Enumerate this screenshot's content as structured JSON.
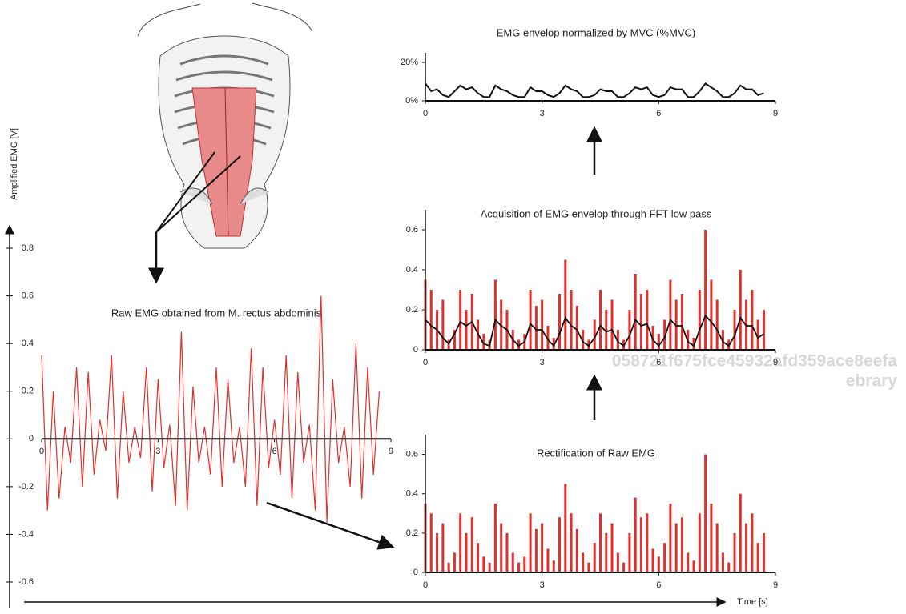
{
  "chart_data": [
    {
      "type": "line",
      "title": "Raw EMG obtained from M. rectus abdominis",
      "ylabel": "Amplified EMG [V]",
      "xlabel": "Time [s]",
      "color": "#e0302b",
      "xlim": [
        0,
        9
      ],
      "ylim": [
        -0.6,
        0.8
      ],
      "xticks": [
        0,
        3,
        6,
        9
      ],
      "yticks": [
        -0.6,
        -0.4,
        -0.2,
        0,
        0.2,
        0.4,
        0.6,
        0.8
      ],
      "x": [
        0,
        0.15,
        0.3,
        0.45,
        0.6,
        0.75,
        0.9,
        1.05,
        1.2,
        1.35,
        1.5,
        1.65,
        1.8,
        1.95,
        2.1,
        2.25,
        2.4,
        2.55,
        2.7,
        2.85,
        3.0,
        3.15,
        3.3,
        3.45,
        3.6,
        3.75,
        3.9,
        4.05,
        4.2,
        4.35,
        4.5,
        4.65,
        4.8,
        4.95,
        5.1,
        5.25,
        5.4,
        5.55,
        5.7,
        5.85,
        6.0,
        6.15,
        6.3,
        6.45,
        6.6,
        6.75,
        6.9,
        7.05,
        7.2,
        7.35,
        7.5,
        7.65,
        7.8,
        7.95,
        8.1,
        8.25,
        8.4,
        8.55,
        8.7
      ],
      "values": [
        0.35,
        -0.3,
        0.2,
        -0.25,
        0.05,
        -0.1,
        0.3,
        -0.2,
        0.28,
        -0.15,
        0.08,
        -0.05,
        0.35,
        -0.25,
        0.2,
        -0.1,
        0.05,
        -0.08,
        0.3,
        -0.22,
        0.25,
        -0.12,
        0.06,
        -0.28,
        0.45,
        -0.3,
        0.22,
        -0.1,
        0.05,
        -0.15,
        0.3,
        -0.2,
        0.25,
        -0.1,
        0.05,
        -0.2,
        0.38,
        -0.28,
        0.3,
        -0.12,
        0.08,
        -0.15,
        0.35,
        -0.25,
        0.28,
        -0.1,
        0.06,
        -0.3,
        0.6,
        -0.35,
        0.25,
        -0.1,
        0.05,
        -0.2,
        0.4,
        -0.25,
        0.3,
        -0.15,
        0.2
      ]
    },
    {
      "type": "bar",
      "title": "Rectification of Raw EMG",
      "color": "#e0302b",
      "xlim": [
        0,
        9
      ],
      "ylim": [
        0,
        0.7
      ],
      "xticks": [
        0,
        3,
        6,
        9
      ],
      "yticks": [
        0,
        0.2,
        0.4,
        0.6
      ],
      "x": [
        0,
        0.15,
        0.3,
        0.45,
        0.6,
        0.75,
        0.9,
        1.05,
        1.2,
        1.35,
        1.5,
        1.65,
        1.8,
        1.95,
        2.1,
        2.25,
        2.4,
        2.55,
        2.7,
        2.85,
        3.0,
        3.15,
        3.3,
        3.45,
        3.6,
        3.75,
        3.9,
        4.05,
        4.2,
        4.35,
        4.5,
        4.65,
        4.8,
        4.95,
        5.1,
        5.25,
        5.4,
        5.55,
        5.7,
        5.85,
        6.0,
        6.15,
        6.3,
        6.45,
        6.6,
        6.75,
        6.9,
        7.05,
        7.2,
        7.35,
        7.5,
        7.65,
        7.8,
        7.95,
        8.1,
        8.25,
        8.4,
        8.55,
        8.7
      ],
      "values": [
        0.35,
        0.3,
        0.2,
        0.25,
        0.05,
        0.1,
        0.3,
        0.2,
        0.28,
        0.15,
        0.08,
        0.05,
        0.35,
        0.25,
        0.2,
        0.1,
        0.05,
        0.08,
        0.3,
        0.22,
        0.25,
        0.12,
        0.06,
        0.28,
        0.45,
        0.3,
        0.22,
        0.1,
        0.05,
        0.15,
        0.3,
        0.2,
        0.25,
        0.1,
        0.05,
        0.2,
        0.38,
        0.28,
        0.3,
        0.12,
        0.08,
        0.15,
        0.35,
        0.25,
        0.28,
        0.1,
        0.06,
        0.3,
        0.6,
        0.35,
        0.25,
        0.1,
        0.05,
        0.2,
        0.4,
        0.25,
        0.3,
        0.15,
        0.2
      ]
    },
    {
      "type": "bar_line",
      "title": "Acquisition of EMG envelop through FFT low pass",
      "xlim": [
        0,
        9
      ],
      "ylim": [
        0,
        0.7
      ],
      "xticks": [
        0,
        3,
        6,
        9
      ],
      "yticks": [
        0,
        0.2,
        0.4,
        0.6
      ],
      "x": [
        0,
        0.15,
        0.3,
        0.45,
        0.6,
        0.75,
        0.9,
        1.05,
        1.2,
        1.35,
        1.5,
        1.65,
        1.8,
        1.95,
        2.1,
        2.25,
        2.4,
        2.55,
        2.7,
        2.85,
        3.0,
        3.15,
        3.3,
        3.45,
        3.6,
        3.75,
        3.9,
        4.05,
        4.2,
        4.35,
        4.5,
        4.65,
        4.8,
        4.95,
        5.1,
        5.25,
        5.4,
        5.55,
        5.7,
        5.85,
        6.0,
        6.15,
        6.3,
        6.45,
        6.6,
        6.75,
        6.9,
        7.05,
        7.2,
        7.35,
        7.5,
        7.65,
        7.8,
        7.95,
        8.1,
        8.25,
        8.4,
        8.55,
        8.7
      ],
      "series": [
        {
          "style": "bar",
          "color": "#e0302b",
          "values": [
            0.35,
            0.3,
            0.2,
            0.25,
            0.05,
            0.1,
            0.3,
            0.2,
            0.28,
            0.15,
            0.08,
            0.05,
            0.35,
            0.25,
            0.2,
            0.1,
            0.05,
            0.08,
            0.3,
            0.22,
            0.25,
            0.12,
            0.06,
            0.28,
            0.45,
            0.3,
            0.22,
            0.1,
            0.05,
            0.15,
            0.3,
            0.2,
            0.25,
            0.1,
            0.05,
            0.2,
            0.38,
            0.28,
            0.3,
            0.12,
            0.08,
            0.15,
            0.35,
            0.25,
            0.28,
            0.1,
            0.06,
            0.3,
            0.6,
            0.35,
            0.25,
            0.1,
            0.05,
            0.2,
            0.4,
            0.25,
            0.3,
            0.15,
            0.2
          ]
        },
        {
          "style": "line",
          "color": "#111111",
          "values": [
            0.15,
            0.12,
            0.1,
            0.06,
            0.03,
            0.08,
            0.14,
            0.12,
            0.14,
            0.08,
            0.03,
            0.02,
            0.15,
            0.12,
            0.1,
            0.05,
            0.02,
            0.04,
            0.13,
            0.1,
            0.1,
            0.05,
            0.02,
            0.08,
            0.16,
            0.12,
            0.1,
            0.04,
            0.02,
            0.06,
            0.12,
            0.09,
            0.1,
            0.04,
            0.02,
            0.07,
            0.15,
            0.12,
            0.13,
            0.05,
            0.02,
            0.06,
            0.15,
            0.12,
            0.12,
            0.04,
            0.02,
            0.1,
            0.17,
            0.14,
            0.1,
            0.04,
            0.02,
            0.07,
            0.16,
            0.12,
            0.12,
            0.06,
            0.08
          ]
        }
      ]
    },
    {
      "type": "line",
      "title": "EMG envelop normalized by MVC (%MVC)",
      "color": "#111111",
      "xlim": [
        0,
        9
      ],
      "ylim": [
        0,
        25
      ],
      "xticks": [
        0,
        3,
        6,
        9
      ],
      "yticks": [
        {
          "value": 0,
          "label": "0%"
        },
        {
          "value": 20,
          "label": "20%"
        }
      ],
      "x": [
        0,
        0.15,
        0.3,
        0.45,
        0.6,
        0.75,
        0.9,
        1.05,
        1.2,
        1.35,
        1.5,
        1.65,
        1.8,
        1.95,
        2.1,
        2.25,
        2.4,
        2.55,
        2.7,
        2.85,
        3.0,
        3.15,
        3.3,
        3.45,
        3.6,
        3.75,
        3.9,
        4.05,
        4.2,
        4.35,
        4.5,
        4.65,
        4.8,
        4.95,
        5.1,
        5.25,
        5.4,
        5.55,
        5.7,
        5.85,
        6.0,
        6.15,
        6.3,
        6.45,
        6.6,
        6.75,
        6.9,
        7.05,
        7.2,
        7.35,
        7.5,
        7.65,
        7.8,
        7.95,
        8.1,
        8.25,
        8.4,
        8.55,
        8.7
      ],
      "values": [
        9,
        5,
        6,
        3,
        2,
        5,
        8,
        6,
        7,
        4,
        2,
        2,
        8,
        6,
        5,
        3,
        2,
        2,
        7,
        5,
        5,
        3,
        2,
        4,
        8,
        6,
        5,
        2,
        2,
        3,
        6,
        5,
        5,
        2,
        2,
        4,
        7,
        6,
        7,
        3,
        2,
        3,
        7,
        6,
        6,
        2,
        2,
        5,
        9,
        7,
        5,
        2,
        2,
        4,
        8,
        6,
        6,
        3,
        4
      ]
    }
  ],
  "watermark": [
    "058721f675fce45932afd359ace8eefa",
    "ebrary"
  ]
}
